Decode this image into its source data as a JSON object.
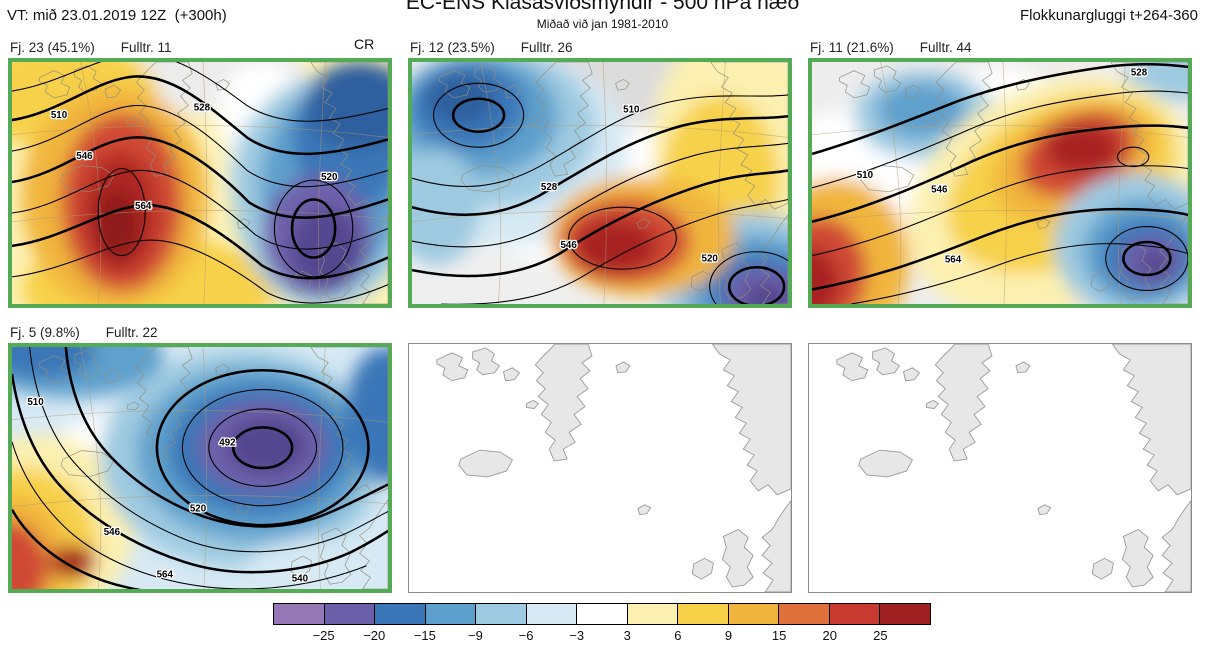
{
  "header": {
    "valid_time": "VT: mið 23.01.2019 12Z  (+300h)",
    "title": "EC-ENS Klasasviðsmyndir - 500 hPa hæð",
    "subtitle": "Miðað við jan 1981-2010",
    "classification_window": "Flokkunargluggi t+264-360",
    "control_label": "CR"
  },
  "panels": [
    {
      "type": "cluster",
      "label": "Fj. 23 (45.1%)",
      "members_label": "Fulltr. 11",
      "contour_labels": [
        "510",
        "528",
        "546",
        "564",
        "520"
      ]
    },
    {
      "type": "cluster",
      "label": "Fj. 12 (23.5%)",
      "members_label": "Fulltr. 26",
      "contour_labels": [
        "510",
        "528",
        "546",
        "520"
      ]
    },
    {
      "type": "cluster",
      "label": "Fj. 11 (21.6%)",
      "members_label": "Fulltr. 44",
      "contour_labels": [
        "510",
        "528",
        "546",
        "564"
      ]
    },
    {
      "type": "cluster",
      "label": "Fj. 5 (9.8%)",
      "members_label": "Fulltr. 22",
      "contour_labels": [
        "492",
        "510",
        "520",
        "540",
        "546",
        "564"
      ]
    },
    {
      "type": "empty"
    },
    {
      "type": "empty"
    }
  ],
  "colorbar": {
    "ticks": [
      "−25",
      "−20",
      "−15",
      "−9",
      "−6",
      "−3",
      "3",
      "6",
      "9",
      "15",
      "20",
      "25"
    ],
    "segment_colors": [
      "#9678b6",
      "#6a5fa8",
      "#3a77b8",
      "#5ea0cd",
      "#9ecae1",
      "#d6e9f4",
      "#ffffff",
      "#fcf0b0",
      "#f7d148",
      "#f1b53e",
      "#e0703c",
      "#c8392f",
      "#9e1f20"
    ]
  },
  "colors": {
    "cluster_border_green": "#55aa55",
    "land_gray": "#e7e7e7"
  }
}
